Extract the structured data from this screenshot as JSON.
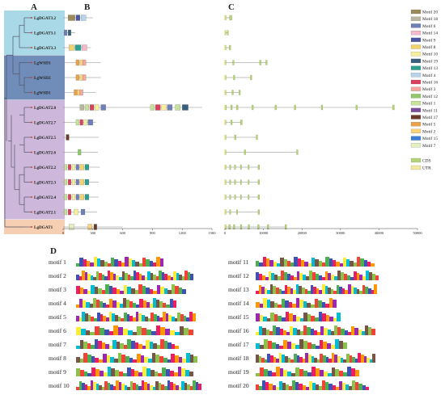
{
  "panels": {
    "a": "A",
    "b": "B",
    "c": "C",
    "d": "D"
  },
  "genes": [
    "LgDGAT3.2",
    "LgDGAT3.1",
    "LgDGAT3.3",
    "LgWSD3",
    "LgWSD2",
    "LgWSD1",
    "LgDGAT2.8",
    "LgDGAT2.7",
    "LgDGAT2.5",
    "LgDGAT2.6",
    "LgDGAT2.2",
    "LgDGAT2.3",
    "LgDGAT2.4",
    "LgDGAT2.1",
    "LgDGAT1"
  ],
  "clade_colors": [
    "#a9d9e6",
    "#6f8db8",
    "#cdb8dc",
    "#f6ceb1"
  ],
  "motif_axis": {
    "max": 1500,
    "ticks": [
      "0",
      "300",
      "600",
      "900",
      "1200",
      "1500"
    ]
  },
  "gene_axis": {
    "max": 50000,
    "ticks": [
      "0",
      "10000",
      "20000",
      "30000",
      "40000",
      "50000"
    ]
  },
  "motif_legend": [
    {
      "name": "Motif 20",
      "color": "#9b8a5a"
    },
    {
      "name": "Motif 18",
      "color": "#b8b6a0"
    },
    {
      "name": "Motif 6",
      "color": "#6f7fb8"
    },
    {
      "name": "Motif 14",
      "color": "#f2b9c8"
    },
    {
      "name": "Motif 9",
      "color": "#4a56a3"
    },
    {
      "name": "Motif 8",
      "color": "#f2d36e"
    },
    {
      "name": "Motif 10",
      "color": "#f7ef9c"
    },
    {
      "name": "Motif 19",
      "color": "#3a5f7d"
    },
    {
      "name": "Motif 13",
      "color": "#2f9f8f"
    },
    {
      "name": "Motif 4",
      "color": "#b7d4e8"
    },
    {
      "name": "Motif 16",
      "color": "#d9425c"
    },
    {
      "name": "Motif 3",
      "color": "#f5a6a0"
    },
    {
      "name": "Motif 12",
      "color": "#8fc76a"
    },
    {
      "name": "Motif 1",
      "color": "#c7e39a"
    },
    {
      "name": "Motif 11",
      "color": "#7a4d9a"
    },
    {
      "name": "Motif 17",
      "color": "#6b3a2a"
    },
    {
      "name": "Motif 5",
      "color": "#e9a247"
    },
    {
      "name": "Motif 2",
      "color": "#f9d27a"
    },
    {
      "name": "Motif 15",
      "color": "#3b7fd6"
    },
    {
      "name": "Motif 7",
      "color": "#e3efc1"
    }
  ],
  "structure_legend": [
    {
      "name": "CDS",
      "color": "#b6d47a"
    },
    {
      "name": "UTR",
      "color": "#f2e9a0"
    }
  ],
  "motif_sequences": [
    {
      "label": "motif 1",
      "seq": "VAFLxRxxFVRxMxxGxxV.VFxxG"
    },
    {
      "label": "motif 2",
      "seq": "LFVxxSxxNxYAxLxxFTxWxLxKxLASxAVFxTxxRGNTW"
    },
    {
      "label": "motif 3",
      "seq": "xxxTxxFxxKxFxxKxxWxYxLxxxQxTxS"
    },
    {
      "label": "motif 4",
      "seq": "xxxxFxxLxxxxFFxIYxxxGGxRxAx MR"
    },
    {
      "label": "motif 5",
      "seq": "FxxLxxAxLxxSKxxLxxSxKxxIxFxTLxVEDxNxxFxx"
    },
    {
      "label": "motif 6",
      "seq": "xxxxxxxxxxxxxxxxxxxxxxxxx"
    },
    {
      "label": "motif 7",
      "seq": "xxKFVxALxxLFxxKxRxxVxxQxxLRI"
    },
    {
      "label": "motif 8",
      "seq": "xxALxxVxxxxxxxxxxxxxxxxxxxxxxxxx"
    },
    {
      "label": "motif 9",
      "seq": "xxxAxxLxxxxxxxxxxxxxxxxxxxxxxx"
    },
    {
      "label": "motif 10",
      "seq": "xxxVRLLTVxxxxxRRxxxxxVLDxLxxTRTFxFFVKxWxNLxR"
    },
    {
      "label": "motif 11",
      "seq": "xxxxxxxxxxxxxxxxxxxxxxxxxxxxxxxWFF"
    },
    {
      "label": "motif 12",
      "seq": "xxxxxxKxxxxxxxFRSxxxRSxxxxxxxxxxxxxxTFE"
    },
    {
      "label": "motif 13",
      "seq": "VxxxLLxxLAxLxxxFxxxxxxxxxxxxxxxxxxxxxxxxxx"
    },
    {
      "label": "motif 14",
      "seq": "xxLxxxxxxxxxxxxxxxxxxx"
    },
    {
      "label": "motif 15",
      "seq": "xxxVxxxxxxRxxxxxxxxxSxI"
    },
    {
      "label": "motif 16",
      "seq": "xxxxxxxxxxxxxxxxxxxxxxxxxxxxxxFxFFW"
    },
    {
      "label": "motif 17",
      "seq": "xxxxxxxxxxxxxxxxxxxxxxx"
    },
    {
      "label": "motif 18",
      "seq": "xxxxxxxxxxxxxxxxxxxxxxxxxxxxxxxxxxxxxxxNS"
    },
    {
      "label": "motif 19",
      "seq": "VxxxVLLSTLxxKxVxLAxVxxxxVx"
    },
    {
      "label": "motif 20",
      "seq": "xxxxxxxxxxxxxxxxxxxxxxxxxxxxxxxxxx"
    }
  ]
}
